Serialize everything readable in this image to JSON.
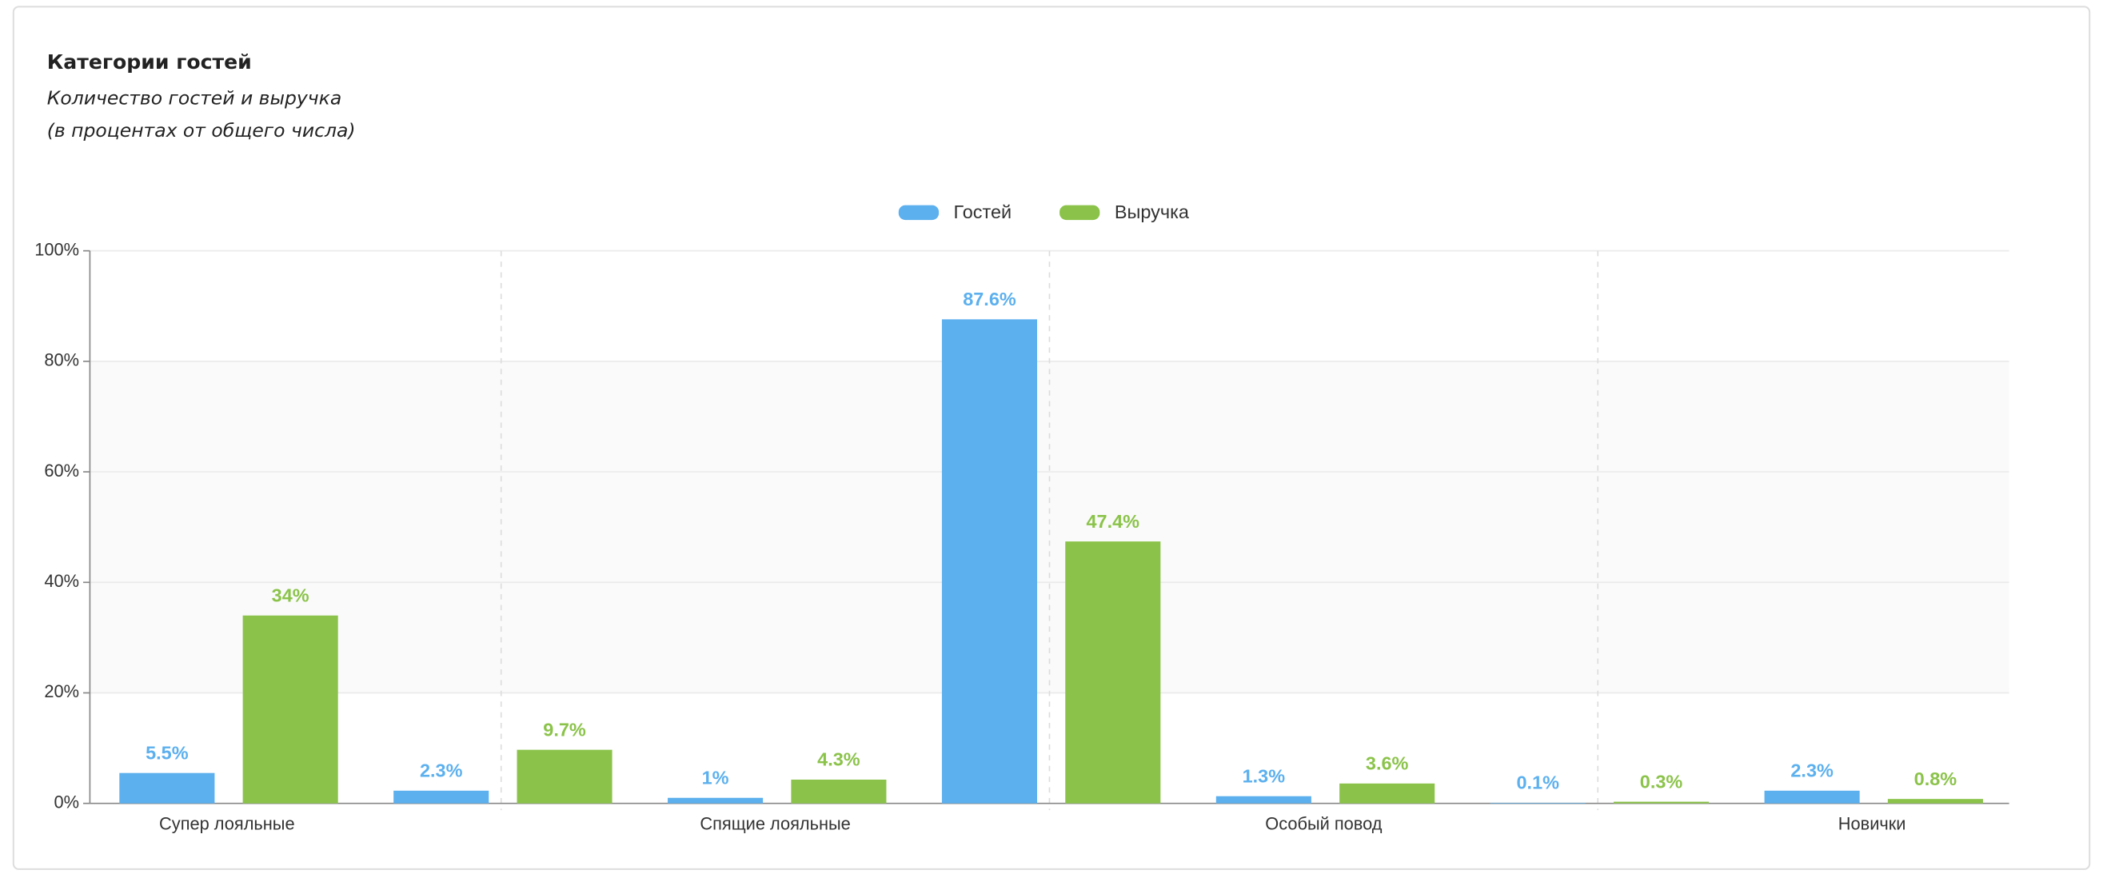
{
  "chart_data": {
    "type": "bar",
    "title": "Категории гостей",
    "subtitle": [
      "Количество гостей и выручка",
      "(в процентах от общего числа)"
    ],
    "categories": [
      "Супер лояльные",
      null,
      "Спящие лояльные",
      null,
      "Особый повод",
      null,
      "Новички"
    ],
    "series": [
      {
        "name": "Гостей",
        "color": "#5cb0ee",
        "values": [
          5.5,
          2.3,
          1,
          87.6,
          1.3,
          0.1,
          2.3
        ],
        "value_labels": [
          "5.5%",
          "2.3%",
          "1%",
          "87.6%",
          "1.3%",
          "0.1%",
          "2.3%"
        ]
      },
      {
        "name": "Выручка",
        "color": "#8bc34a",
        "values": [
          34,
          9.7,
          4.3,
          47.4,
          3.6,
          0.3,
          0.8
        ],
        "value_labels": [
          "34%",
          "9.7%",
          "4.3%",
          "47.4%",
          "3.6%",
          "0.3%",
          "0.8%"
        ]
      }
    ],
    "ylim": [
      0,
      100
    ],
    "yticks": [
      {
        "value": 0,
        "label": "0%"
      },
      {
        "value": 20,
        "label": "20%"
      },
      {
        "value": 40,
        "label": "40%"
      },
      {
        "value": 60,
        "label": "60%"
      },
      {
        "value": 80,
        "label": "80%"
      },
      {
        "value": 100,
        "label": "100%"
      }
    ],
    "grid": true,
    "legend": "top"
  }
}
